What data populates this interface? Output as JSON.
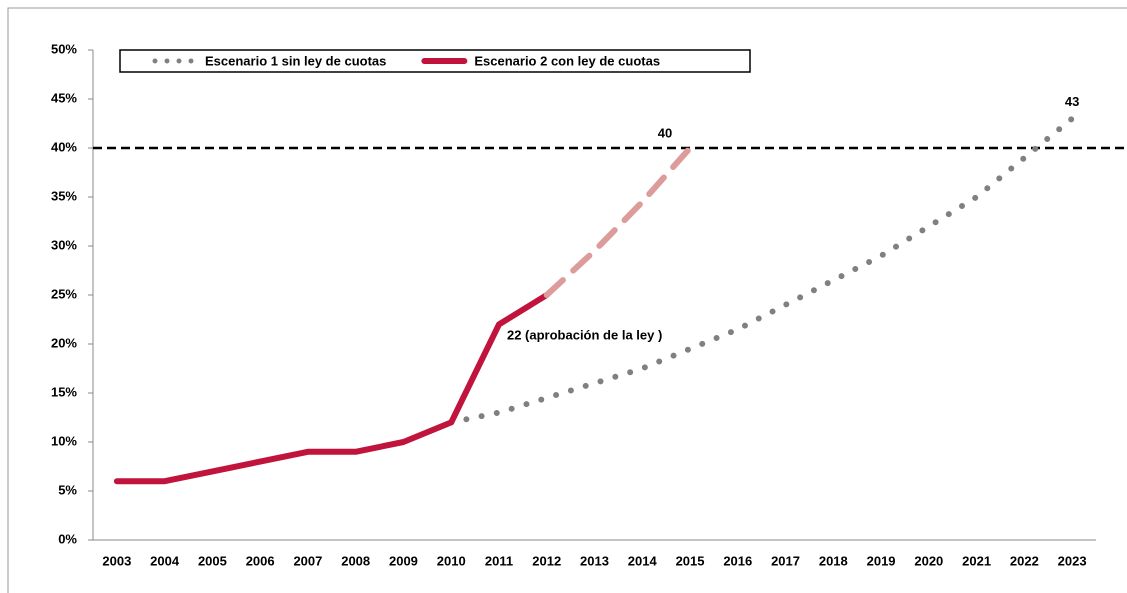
{
  "chart_data": {
    "type": "line",
    "categories": [
      "2003",
      "2004",
      "2005",
      "2006",
      "2007",
      "2008",
      "2009",
      "2010",
      "2011",
      "2012",
      "2013",
      "2014",
      "2015",
      "2016",
      "2017",
      "2018",
      "2019",
      "2020",
      "2021",
      "2022",
      "2023"
    ],
    "series": [
      {
        "name": "Escenario 1 sin ley de cuotas",
        "color": "#808080",
        "dash": "dotted",
        "values": [
          null,
          null,
          null,
          null,
          null,
          null,
          null,
          12,
          13,
          14.5,
          16,
          17.5,
          19.5,
          21.5,
          24,
          26.5,
          29,
          32,
          35,
          39,
          43
        ]
      },
      {
        "name": "Escenario 2 con ley de cuotas",
        "color": "#c0143c",
        "dash": "solid",
        "values": [
          6,
          6,
          7,
          8,
          9,
          9,
          10,
          12,
          22,
          25,
          null,
          null,
          null,
          null,
          null,
          null,
          null,
          null,
          null,
          null,
          null
        ]
      },
      {
        "color": "#dd9c9c",
        "dash": "dashed",
        "values": [
          null,
          null,
          null,
          null,
          null,
          null,
          null,
          null,
          null,
          25,
          29.5,
          34.5,
          40,
          null,
          null,
          null,
          null,
          null,
          null,
          null,
          null
        ]
      }
    ],
    "reference_line": 40,
    "annotations": [
      "40",
      "43",
      "22 (aprobación de la ley )"
    ],
    "ylim": [
      0,
      50
    ],
    "yticks": [
      {
        "value": 0,
        "label": "0%"
      },
      {
        "value": 5,
        "label": "5%"
      },
      {
        "value": 10,
        "label": "10%"
      },
      {
        "value": 15,
        "label": "15%"
      },
      {
        "value": 20,
        "label": "20%"
      },
      {
        "value": 25,
        "label": "25%"
      },
      {
        "value": 30,
        "label": "30%"
      },
      {
        "value": 35,
        "label": "35%"
      },
      {
        "value": 40,
        "label": "40%"
      },
      {
        "value": 45,
        "label": "45%"
      },
      {
        "value": 50,
        "label": "50%"
      }
    ],
    "legend": "top-left"
  }
}
